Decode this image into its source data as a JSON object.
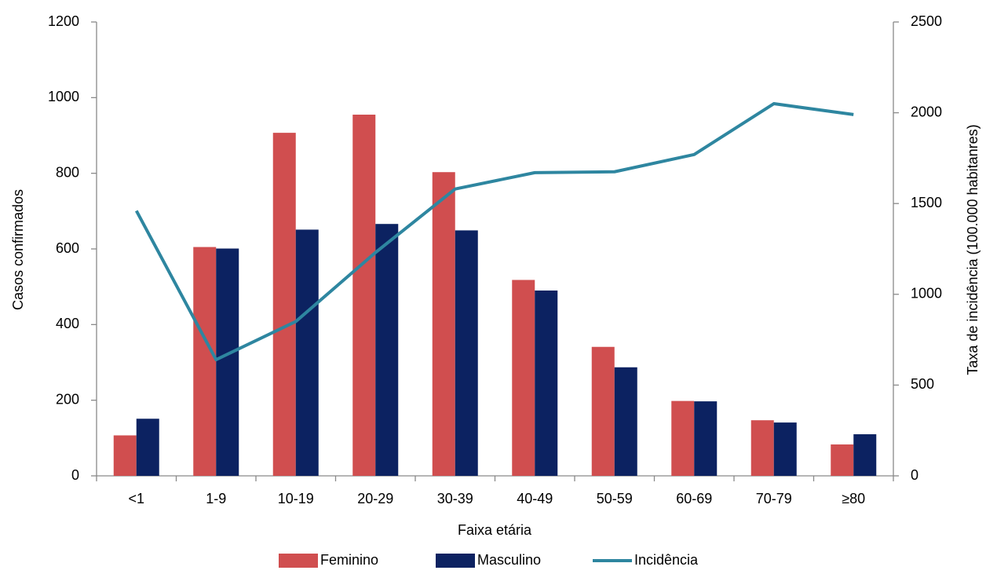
{
  "chart_data": {
    "type": "bar",
    "x_label": "Faixa etária",
    "y_label": "Casos confirmados",
    "y2_label": "Taxa de incidência (100.000 habitanres)",
    "categories": [
      "<1",
      "1-9",
      "10-19",
      "20-29",
      "30-39",
      "40-49",
      "50-59",
      "60-69",
      "70-79",
      "≥80"
    ],
    "series": [
      {
        "name": "Feminino",
        "type": "bar",
        "color": "#d04e4f",
        "values": [
          107,
          605,
          907,
          955,
          803,
          518,
          341,
          198,
          147,
          83
        ]
      },
      {
        "name": "Masculino",
        "type": "bar",
        "color": "#0c2261",
        "values": [
          151,
          601,
          651,
          666,
          649,
          490,
          287,
          197,
          141,
          110
        ]
      },
      {
        "name": "Incidência",
        "type": "line",
        "axis": "y2",
        "color": "#2e86a0",
        "values": [
          1460,
          640,
          850,
          1230,
          1580,
          1670,
          1675,
          1770,
          2050,
          1990
        ]
      }
    ],
    "ylim": [
      0,
      1200
    ],
    "yticks": [
      0,
      200,
      400,
      600,
      800,
      1000,
      1200
    ],
    "y2lim": [
      0,
      2500
    ],
    "y2ticks": [
      0,
      500,
      1000,
      1500,
      2000,
      2500
    ],
    "grid": false,
    "legend": "bottom"
  }
}
